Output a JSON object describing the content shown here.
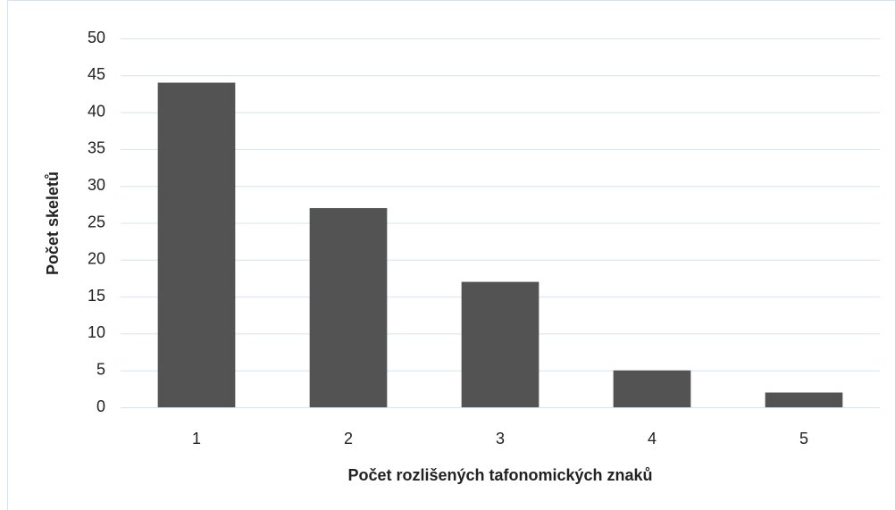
{
  "chart_data": {
    "type": "bar",
    "xlabel": "Počet rozlišených tafonomických znaků",
    "ylabel": "Počet skeletů",
    "categories": [
      "1",
      "2",
      "3",
      "4",
      "5"
    ],
    "values": [
      44,
      27,
      17,
      5,
      2
    ],
    "color": "#535353",
    "ylim": [
      0,
      50
    ],
    "yticks": [
      0,
      5,
      10,
      15,
      20,
      25,
      30,
      35,
      40,
      45,
      50
    ],
    "grid": true
  }
}
